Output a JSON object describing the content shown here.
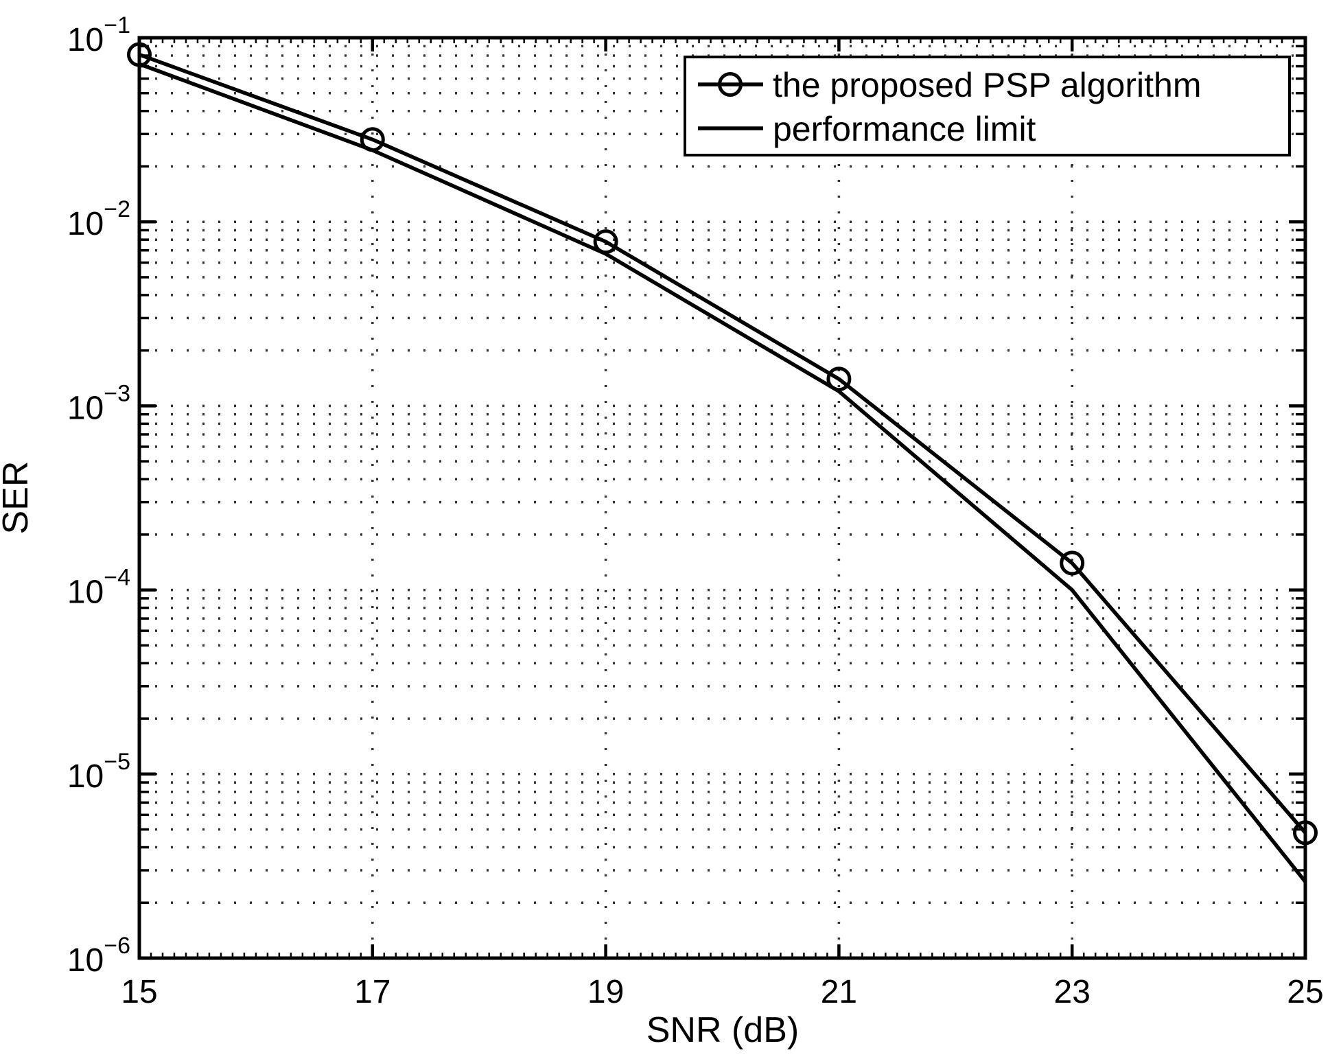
{
  "figure": {
    "background": "#ffffff",
    "axis_color": "#000000",
    "grid_color": "#333333",
    "series_color": "#000000"
  },
  "chart_data": {
    "type": "line",
    "title": "",
    "xlabel": "SNR (dB)",
    "ylabel": "SER",
    "x_axis": {
      "min": 15,
      "max": 25,
      "ticks": [
        15,
        17,
        19,
        21,
        23,
        25
      ],
      "tick_labels": [
        "15",
        "17",
        "19",
        "21",
        "23",
        "25"
      ],
      "minor_tick_step": 0.1,
      "gridlines_at": [
        17,
        19,
        21,
        23
      ]
    },
    "y_axis": {
      "scale": "log",
      "min_exponent": -6,
      "max_exponent": -1,
      "tick_exponents": [
        -1,
        -2,
        -3,
        -4,
        -5,
        -6
      ],
      "tick_label_base": "10"
    },
    "grid": "dotted",
    "legend": {
      "position": "top-right",
      "entries": [
        "the proposed PSP algorithm",
        "performance limit"
      ]
    },
    "series": [
      {
        "name": "the proposed PSP algorithm",
        "marker": "circle",
        "line": "solid",
        "color": "#000000",
        "x": [
          15,
          17,
          19,
          21,
          23,
          25
        ],
        "y": [
          0.081,
          0.028,
          0.0078,
          0.0014,
          0.00014,
          4.8e-06
        ]
      },
      {
        "name": "performance limit",
        "marker": "none",
        "line": "solid",
        "color": "#000000",
        "x": [
          15,
          17,
          19,
          21,
          23,
          25
        ],
        "y": [
          0.072,
          0.0245,
          0.0067,
          0.0012,
          0.0001,
          2.6e-06
        ]
      }
    ]
  }
}
